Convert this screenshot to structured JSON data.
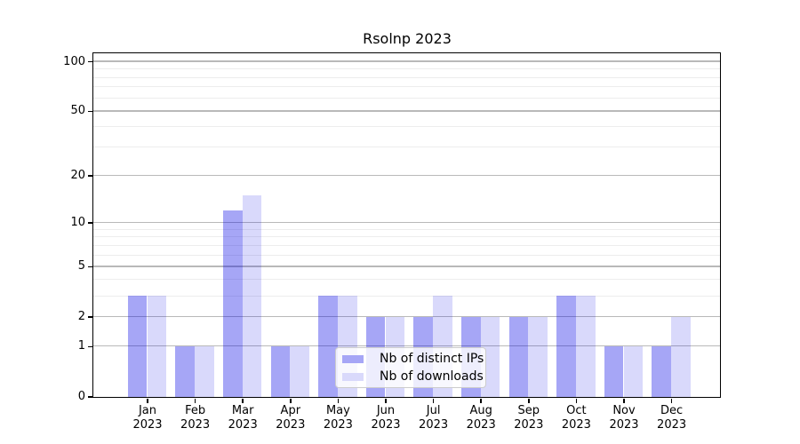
{
  "title": "Rsolnp 2023",
  "chart_data": {
    "type": "bar",
    "title": "Rsolnp 2023",
    "xlabel": "",
    "ylabel": "",
    "categories": [
      "Jan 2023",
      "Feb 2023",
      "Mar 2023",
      "Apr 2023",
      "May 2023",
      "Jun 2023",
      "Jul 2023",
      "Aug 2023",
      "Sep 2023",
      "Oct 2023",
      "Nov 2023",
      "Dec 2023"
    ],
    "series": [
      {
        "name": "Nb of distinct IPs",
        "color": "#a6a6f6",
        "fill_rgba": "rgba(0,0,230,0.35)",
        "values": [
          3,
          1,
          12,
          1,
          3,
          2,
          2,
          2,
          2,
          3,
          1,
          1
        ]
      },
      {
        "name": "Nb of downloads",
        "color": "#d9d9fb",
        "fill_rgba": "rgba(0,0,230,0.15)",
        "values": [
          3,
          1,
          15,
          1,
          3,
          2,
          3,
          2,
          2,
          3,
          1,
          2
        ]
      }
    ],
    "yscale": "log10(value+1)",
    "ytick_values": [
      0,
      1,
      2,
      5,
      10,
      20,
      50,
      100
    ],
    "ytick_labels": [
      "0",
      "1",
      "2",
      "5",
      "10",
      "20",
      "50",
      "100"
    ],
    "minor_grid_values": [
      3,
      4,
      6,
      7,
      8,
      9,
      30,
      40,
      60,
      70,
      80,
      90
    ],
    "ylim": [
      0,
      113
    ],
    "grid": true,
    "legend_position": "lower-center",
    "colors": {
      "major_grid": "#b9b9b9",
      "minor_grid": "#ededed",
      "axis": "#000000",
      "legend_border": "#cccccc"
    }
  }
}
